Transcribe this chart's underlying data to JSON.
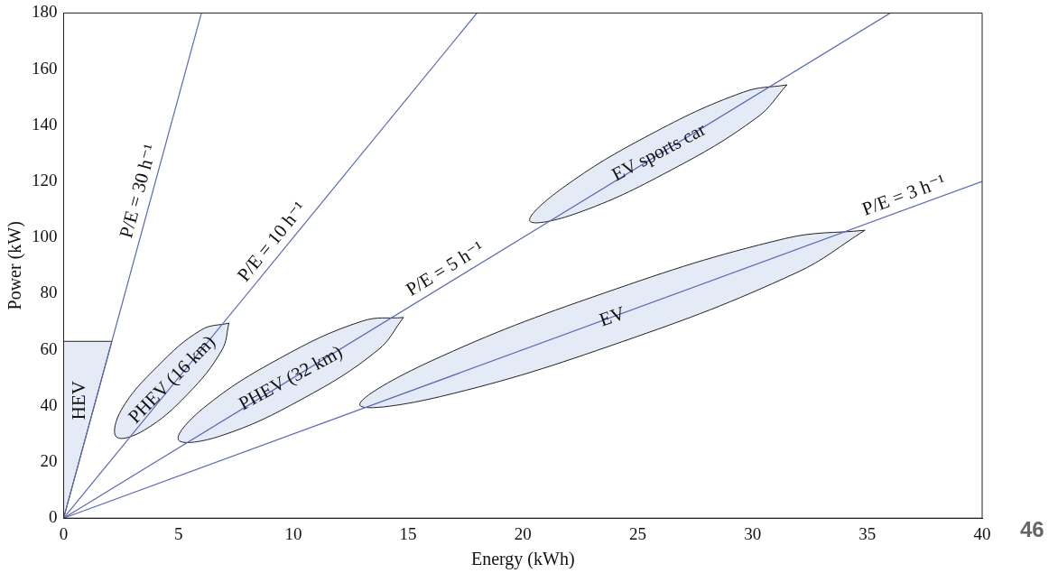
{
  "chart_data": {
    "type": "line",
    "xlabel": "Energy (kWh)",
    "ylabel": "Power (kW)",
    "xlim": [
      0,
      40
    ],
    "ylim": [
      0,
      180
    ],
    "xticks": [
      0,
      5,
      10,
      15,
      20,
      25,
      30,
      35,
      40
    ],
    "yticks": [
      0,
      20,
      40,
      60,
      80,
      100,
      120,
      140,
      160,
      180
    ],
    "grid": false,
    "legend": false,
    "marker": "none",
    "series": [
      {
        "name": "P/E = 30 h⁻¹",
        "color": "#5b68b5",
        "x": [
          0,
          6
        ],
        "values": [
          0,
          180
        ]
      },
      {
        "name": "P/E = 10 h⁻¹",
        "color": "#5b68b5",
        "x": [
          0,
          18
        ],
        "values": [
          0,
          180
        ]
      },
      {
        "name": "P/E = 5 h⁻¹",
        "color": "#5b68b5",
        "x": [
          0,
          36
        ],
        "values": [
          0,
          180
        ]
      },
      {
        "name": "P/E = 3 h⁻¹",
        "color": "#5b68b5",
        "x": [
          0,
          40
        ],
        "values": [
          0,
          120
        ]
      },
      {
        "type": "area",
        "name": "HEV",
        "color": "#e4eaf6",
        "x": [
          0,
          2.1,
          0,
          0
        ],
        "values": [
          63,
          63,
          0,
          63
        ]
      },
      {
        "type": "area",
        "name": "PHEV (16 km)",
        "color": "#e4eaf6",
        "x": [
          7.2,
          6.9,
          5.4,
          3.5,
          2.3,
          2.5,
          4.1,
          6.0,
          7.2
        ],
        "values": [
          69.5,
          60.0,
          44.2,
          31.3,
          28.9,
          38.4,
          54.2,
          67.1,
          69.5
        ]
      },
      {
        "type": "area",
        "name": "PHEV (32 km)",
        "color": "#e4eaf6",
        "x": [
          14.8,
          13.7,
          10.4,
          6.8,
          5.0,
          6.1,
          9.4,
          13.0,
          14.8
        ],
        "values": [
          71.5,
          60.0,
          42.5,
          29.2,
          27.9,
          39.3,
          56.9,
          70.2,
          71.5
        ]
      },
      {
        "type": "area",
        "name": "EV",
        "color": "#e4eaf6",
        "x": [
          34.9,
          31.9,
          24.3,
          16.4,
          12.9,
          15.9,
          23.5,
          31.4,
          34.9
        ],
        "values": [
          102.6,
          87.4,
          62.8,
          43.3,
          40.3,
          55.6,
          80.1,
          99.6,
          102.6
        ]
      },
      {
        "type": "area",
        "name": "EV sports car",
        "color": "#e4eaf6",
        "x": [
          31.5,
          30.2,
          26.4,
          22.3,
          20.3,
          21.7,
          25.5,
          29.6,
          31.5
        ],
        "values": [
          154.4,
          142.8,
          123.8,
          108.5,
          105.9,
          117.5,
          136.5,
          151.8,
          154.4
        ]
      }
    ],
    "annotations": [
      "46"
    ]
  }
}
